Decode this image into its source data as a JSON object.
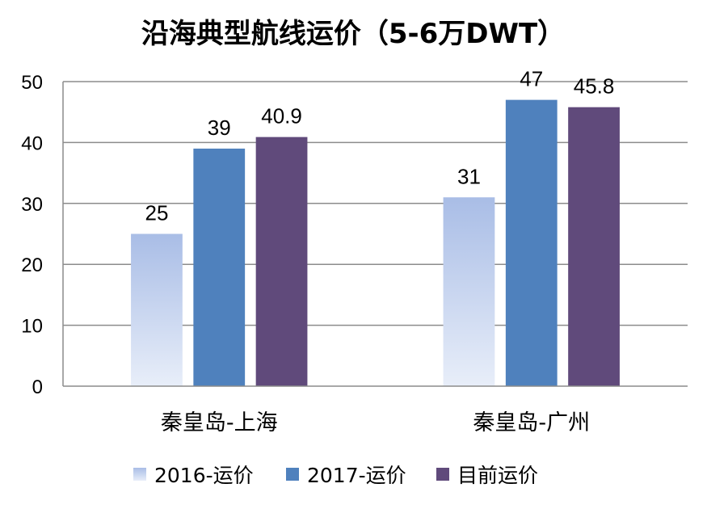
{
  "chart_data": {
    "type": "bar",
    "title": "沿海典型航线运价（5-6万DWT）",
    "categories": [
      "秦皇岛-上海",
      "秦皇岛-广州"
    ],
    "series": [
      {
        "name": "2016-运价",
        "values": [
          25,
          31
        ],
        "labels": [
          "25",
          "31"
        ],
        "color": "#a9bde6"
      },
      {
        "name": "2017-运价",
        "values": [
          39,
          47
        ],
        "labels": [
          "39",
          "47"
        ],
        "color": "#4f81bd"
      },
      {
        "name": "目前运价",
        "values": [
          40.9,
          45.8
        ],
        "labels": [
          "40.9",
          "45.8"
        ],
        "color": "#604a7b"
      }
    ],
    "yticks": [
      "0",
      "10",
      "20",
      "30",
      "40",
      "50"
    ],
    "ylim": [
      0,
      50
    ],
    "grid": true,
    "legend_position": "bottom"
  }
}
